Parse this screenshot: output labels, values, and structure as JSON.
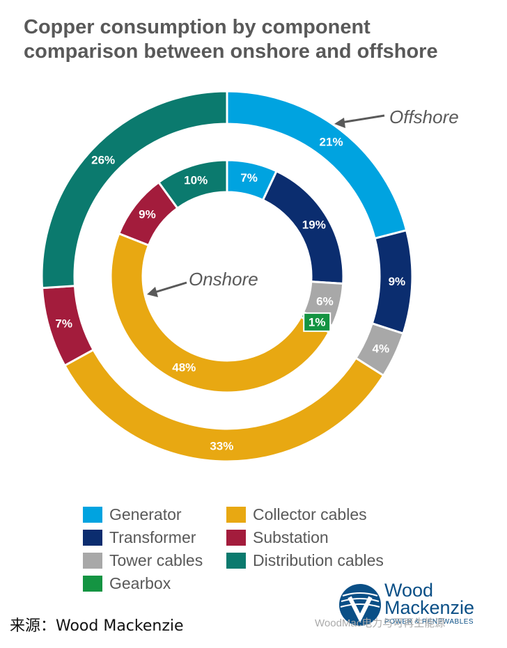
{
  "title": {
    "line1": "Copper consumption by component",
    "line2": "comparison between onshore and offshore"
  },
  "chart_data": {
    "type": "pie",
    "subtype": "nested-donut",
    "categories": [
      "Generator",
      "Transformer",
      "Tower cables",
      "Gearbox",
      "Collector cables",
      "Substation",
      "Distribution cables"
    ],
    "colors": {
      "Generator": "#00a3e0",
      "Transformer": "#0b2d6f",
      "Tower cables": "#a8a8a8",
      "Gearbox": "#149442",
      "Collector cables": "#e8a812",
      "Substation": "#a31c3c",
      "Distribution cables": "#0b7a6e"
    },
    "series": [
      {
        "name": "Offshore",
        "ring": "outer",
        "values": [
          21,
          9,
          4,
          0,
          33,
          7,
          26
        ],
        "labels": [
          "21%",
          "9%",
          "4%",
          "",
          "33%",
          "7%",
          "26%"
        ]
      },
      {
        "name": "Onshore",
        "ring": "inner",
        "values": [
          7,
          19,
          6,
          1,
          48,
          9,
          10
        ],
        "labels": [
          "7%",
          "19%",
          "6%",
          "1%",
          "48%",
          "9%",
          "10%"
        ]
      }
    ],
    "legend": {
      "position": "bottom",
      "items": [
        {
          "label": "Generator",
          "color": "#00a3e0"
        },
        {
          "label": "Collector cables",
          "color": "#e8a812"
        },
        {
          "label": "Transformer",
          "color": "#0b2d6f"
        },
        {
          "label": "Substation",
          "color": "#a31c3c"
        },
        {
          "label": "Tower cables",
          "color": "#a8a8a8"
        },
        {
          "label": "Distribution cables",
          "color": "#0b7a6e"
        },
        {
          "label": "Gearbox",
          "color": "#149442"
        }
      ]
    }
  },
  "source": "来源：Wood Mackenzie",
  "logo": {
    "line1": "Wood",
    "line2": "Mackenzie",
    "tagline": "POWER & RENEWABLES"
  },
  "watermark": "WoodMac电力与可再生能源"
}
